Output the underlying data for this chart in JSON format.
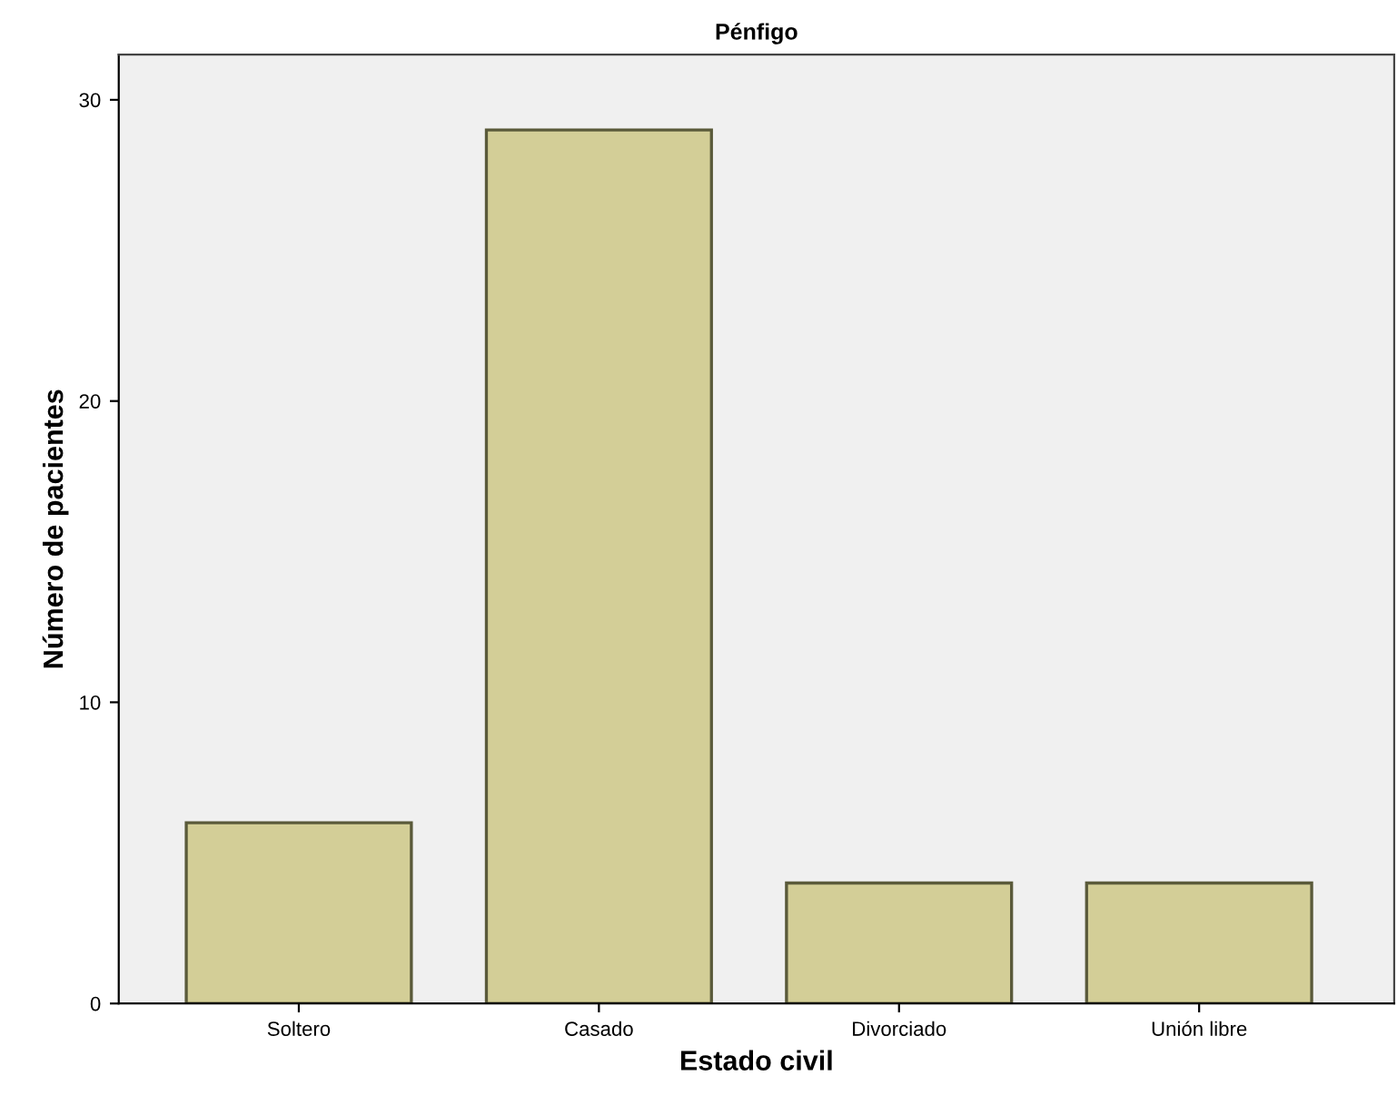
{
  "chart_data": {
    "type": "bar",
    "title": "Pénfigo",
    "xlabel": "Estado civil",
    "ylabel": "Número de pacientes",
    "categories": [
      "Soltero",
      "Casado",
      "Divorciado",
      "Unión libre"
    ],
    "values": [
      6,
      29,
      4,
      4
    ],
    "color": "#d3ce97",
    "ylim": [
      0,
      31.5
    ],
    "yticks": [
      0,
      10,
      20,
      30
    ],
    "grid": false,
    "legend": false
  }
}
